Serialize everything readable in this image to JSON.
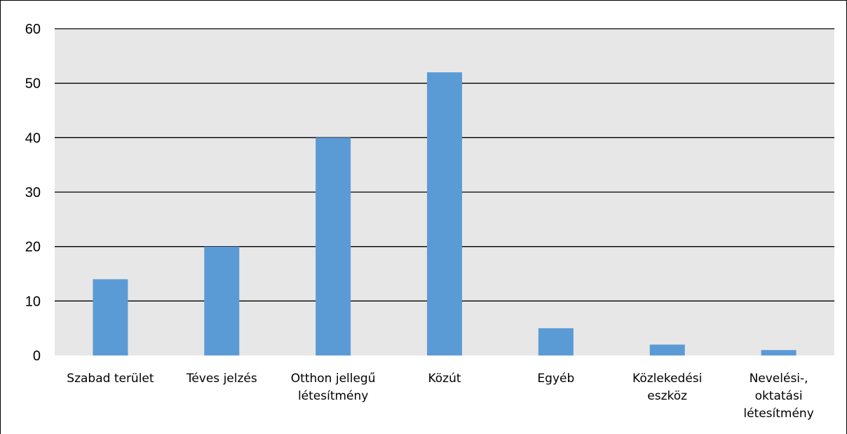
{
  "chart_data": {
    "type": "bar",
    "categories": [
      [
        "Szabad terület"
      ],
      [
        "Téves jelzés"
      ],
      [
        "Otthon jellegű",
        "létesítmény"
      ],
      [
        "Közút"
      ],
      [
        "Egyéb"
      ],
      [
        "Közlekedési",
        "eszköz"
      ],
      [
        "Nevelési-,",
        "oktatási",
        "létesítmény"
      ]
    ],
    "values": [
      14,
      20,
      40,
      52,
      5,
      2,
      1
    ],
    "ylim": [
      0,
      60
    ],
    "yticks": [
      0,
      10,
      20,
      30,
      40,
      50,
      60
    ],
    "grid": true,
    "bar_color": "#5b9bd5",
    "plot_background": "#e7e7e7"
  }
}
